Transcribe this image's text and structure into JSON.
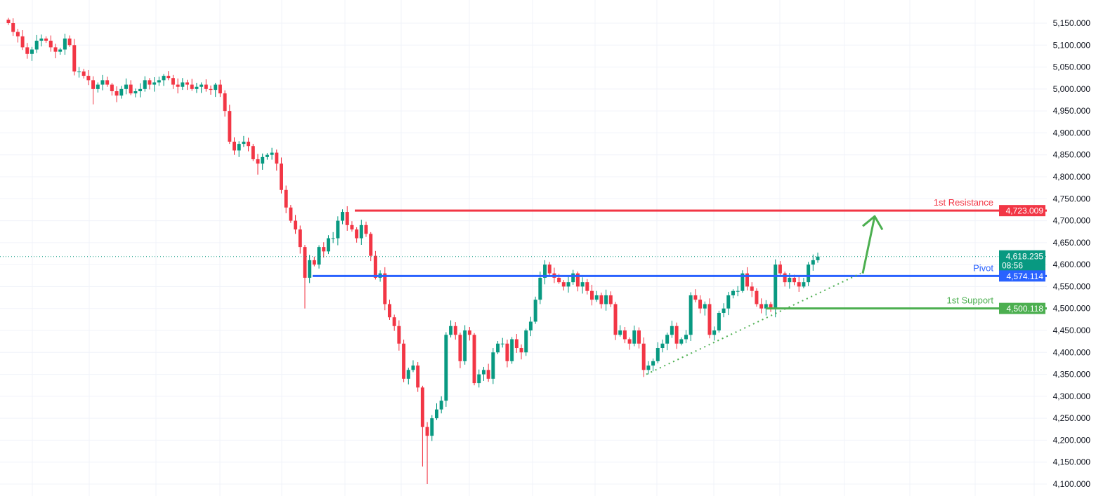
{
  "chart_data": {
    "type": "candlestick",
    "title": "",
    "xlabel": "",
    "ylabel": "",
    "ylim": [
      4100,
      5150
    ],
    "grid": true,
    "y_ticks": [
      "5,150.000",
      "5,100.000",
      "5,050.000",
      "5,000.000",
      "4,950.000",
      "4,900.000",
      "4,850.000",
      "4,800.000",
      "4,750.000",
      "4,700.000",
      "4,650.000",
      "4,600.000",
      "4,550.000",
      "4,500.000",
      "4,450.000",
      "4,400.000",
      "4,350.000",
      "4,300.000",
      "4,250.000",
      "4,200.000",
      "4,150.000",
      "4,100.000"
    ],
    "y_tick_values": [
      5150,
      5100,
      5050,
      5000,
      4950,
      4900,
      4850,
      4800,
      4750,
      4700,
      4650,
      4600,
      4550,
      4500,
      4450,
      4400,
      4350,
      4300,
      4250,
      4200,
      4150,
      4100
    ],
    "close": [
      5150,
      5130,
      5120,
      5095,
      5080,
      5090,
      5110,
      5115,
      5110,
      5095,
      5085,
      5090,
      5115,
      5100,
      5040,
      5040,
      5030,
      5020,
      5000,
      5010,
      5020,
      5010,
      4995,
      4985,
      5000,
      5010,
      4990,
      4995,
      5000,
      5020,
      5010,
      5015,
      5020,
      5030,
      5025,
      5010,
      5005,
      5015,
      5010,
      5000,
      5005,
      5010,
      5000,
      4998,
      5010,
      4990,
      4950,
      4880,
      4860,
      4875,
      4880,
      4870,
      4840,
      4830,
      4845,
      4850,
      4855,
      4830,
      4770,
      4730,
      4700,
      4680,
      4640,
      4570,
      4610,
      4600,
      4640,
      4630,
      4660,
      4660,
      4700,
      4720,
      4690,
      4680,
      4660,
      4690,
      4670,
      4620,
      4570,
      4580,
      4510,
      4480,
      4460,
      4420,
      4340,
      4360,
      4370,
      4320,
      4230,
      4210,
      4250,
      4270,
      4290,
      4440,
      4460,
      4440,
      4380,
      4450,
      4440,
      4330,
      4350,
      4360,
      4340,
      4400,
      4420,
      4420,
      4380,
      4430,
      4410,
      4400,
      4450,
      4470,
      4520,
      4570,
      4600,
      4580,
      4570,
      4560,
      4550,
      4560,
      4580,
      4550,
      4560,
      4540,
      4520,
      4530,
      4510,
      4530,
      4510,
      4440,
      4450,
      4430,
      4420,
      4450,
      4420,
      4360,
      4370,
      4380,
      4410,
      4420,
      4440,
      4460,
      4420,
      4430,
      4440,
      4530,
      4520,
      4500,
      4510,
      4440,
      4450,
      4490,
      4500,
      4530,
      4540,
      4540,
      4580,
      4550,
      4540,
      4510,
      4500,
      4510,
      4500,
      4600,
      4580,
      4560,
      4570,
      4560,
      4550,
      4560,
      4600,
      4610,
      4618.235
    ],
    "wick_extremes": [
      {
        "index": 63,
        "low": 4500
      },
      {
        "index": 89,
        "low": 4100
      },
      {
        "index": 88,
        "low": 4140
      },
      {
        "index": 18,
        "low": 4965
      },
      {
        "index": 53,
        "low": 4805
      },
      {
        "index": 136,
        "low": 4350
      },
      {
        "index": 163,
        "low": 4480
      }
    ],
    "levels": [
      {
        "name": "1st Resistance",
        "value": 4723.009,
        "value_label": "4,723.009",
        "color": "#f23645"
      },
      {
        "name": "Pivot",
        "value": 4574.114,
        "value_label": "4,574.114",
        "color": "#2962ff"
      },
      {
        "name": "1st Support",
        "value": 4500.118,
        "value_label": "4,500.118",
        "color": "#4caf50"
      }
    ],
    "current_price": {
      "value": 4618.235,
      "value_label": "4,618.235",
      "countdown": "08:56",
      "color": "#089981"
    },
    "trendline": {
      "from": 4350,
      "to": 4580,
      "color": "#4caf50",
      "style": "dotted"
    },
    "projection_arrow": {
      "from": 4580,
      "to": 4710,
      "color": "#4caf50"
    },
    "colors": {
      "up": "#089981",
      "down": "#f23645",
      "grid": "#f0f3fa"
    }
  }
}
